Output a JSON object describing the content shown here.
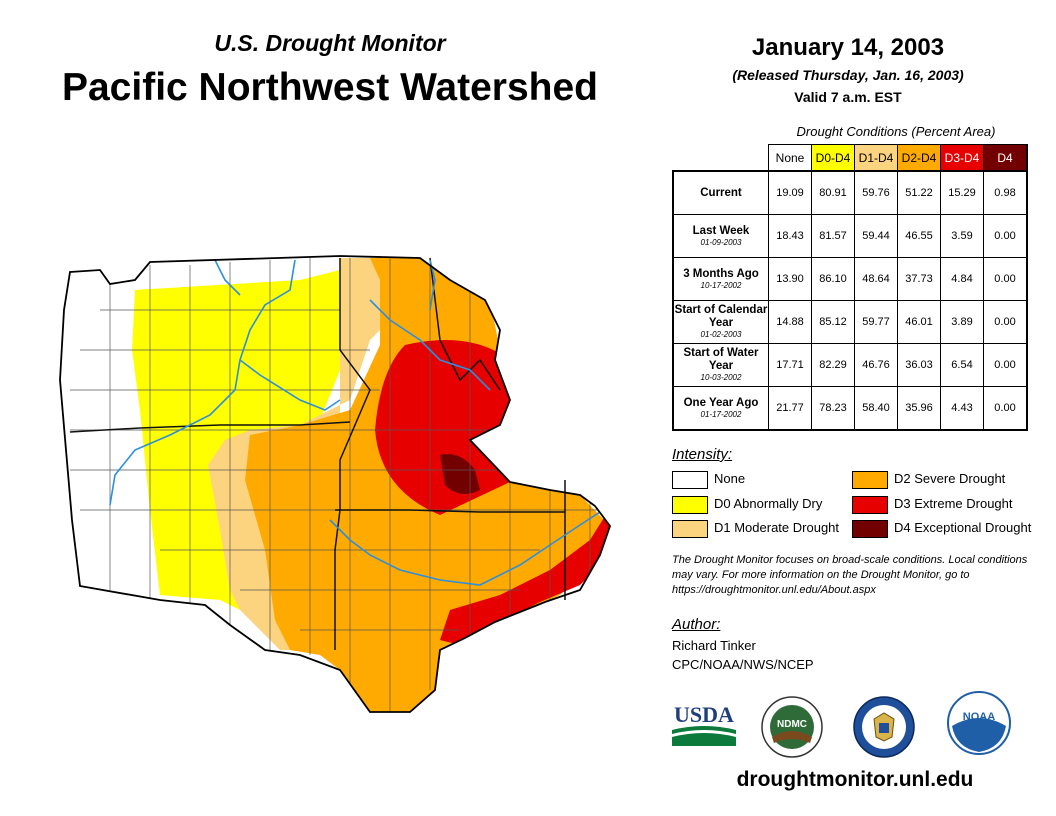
{
  "header": {
    "subtitle": "U.S. Drought Monitor",
    "title": "Pacific Northwest Watershed",
    "date": "January 14, 2003",
    "released": "(Released Thursday, Jan. 16, 2003)",
    "valid": "Valid 7 a.m. EST"
  },
  "stats": {
    "caption": "Drought Conditions (Percent Area)",
    "columns": [
      "None",
      "D0-D4",
      "D1-D4",
      "D2-D4",
      "D3-D4",
      "D4"
    ],
    "column_colors": [
      "#ffffff",
      "#ffff00",
      "#fcd37f",
      "#ffaa00",
      "#e60000",
      "#730000"
    ],
    "rows": [
      {
        "label": "Current",
        "date": "",
        "values": [
          "19.09",
          "80.91",
          "59.76",
          "51.22",
          "15.29",
          "0.98"
        ]
      },
      {
        "label": "Last Week",
        "date": "01-09-2003",
        "values": [
          "18.43",
          "81.57",
          "59.44",
          "46.55",
          "3.59",
          "0.00"
        ]
      },
      {
        "label": "3 Months Ago",
        "date": "10-17-2002",
        "values": [
          "13.90",
          "86.10",
          "48.64",
          "37.73",
          "4.84",
          "0.00"
        ]
      },
      {
        "label": "Start of Calendar Year",
        "date": "01-02-2003",
        "values": [
          "14.88",
          "85.12",
          "59.77",
          "46.01",
          "3.89",
          "0.00"
        ]
      },
      {
        "label": "Start of Water Year",
        "date": "10-03-2002",
        "values": [
          "17.71",
          "82.29",
          "46.76",
          "36.03",
          "6.54",
          "0.00"
        ]
      },
      {
        "label": "One Year Ago",
        "date": "01-17-2002",
        "values": [
          "21.77",
          "78.23",
          "58.40",
          "35.96",
          "4.43",
          "0.00"
        ]
      }
    ]
  },
  "legend": {
    "title": "Intensity:",
    "items": [
      {
        "label": "None",
        "color": "#ffffff"
      },
      {
        "label": "D0 Abnormally Dry",
        "color": "#ffff00"
      },
      {
        "label": "D1 Moderate Drought",
        "color": "#fcd37f"
      },
      {
        "label": "D2 Severe Drought",
        "color": "#ffaa00"
      },
      {
        "label": "D3 Extreme Drought",
        "color": "#e60000"
      },
      {
        "label": "D4 Exceptional Drought",
        "color": "#730000"
      }
    ]
  },
  "note": "The Drought Monitor focuses on broad-scale conditions. Local conditions may vary. For more information on the Drought Monitor, go to https://droughtmonitor.unl.edu/About.aspx",
  "author": {
    "title": "Author:",
    "name": "Richard Tinker",
    "org": "CPC/NOAA/NWS/NCEP"
  },
  "logos": {
    "usda": "USDA",
    "ndmc": "NDMC",
    "noaa": "NOAA"
  },
  "url": "droughtmonitor.unl.edu"
}
